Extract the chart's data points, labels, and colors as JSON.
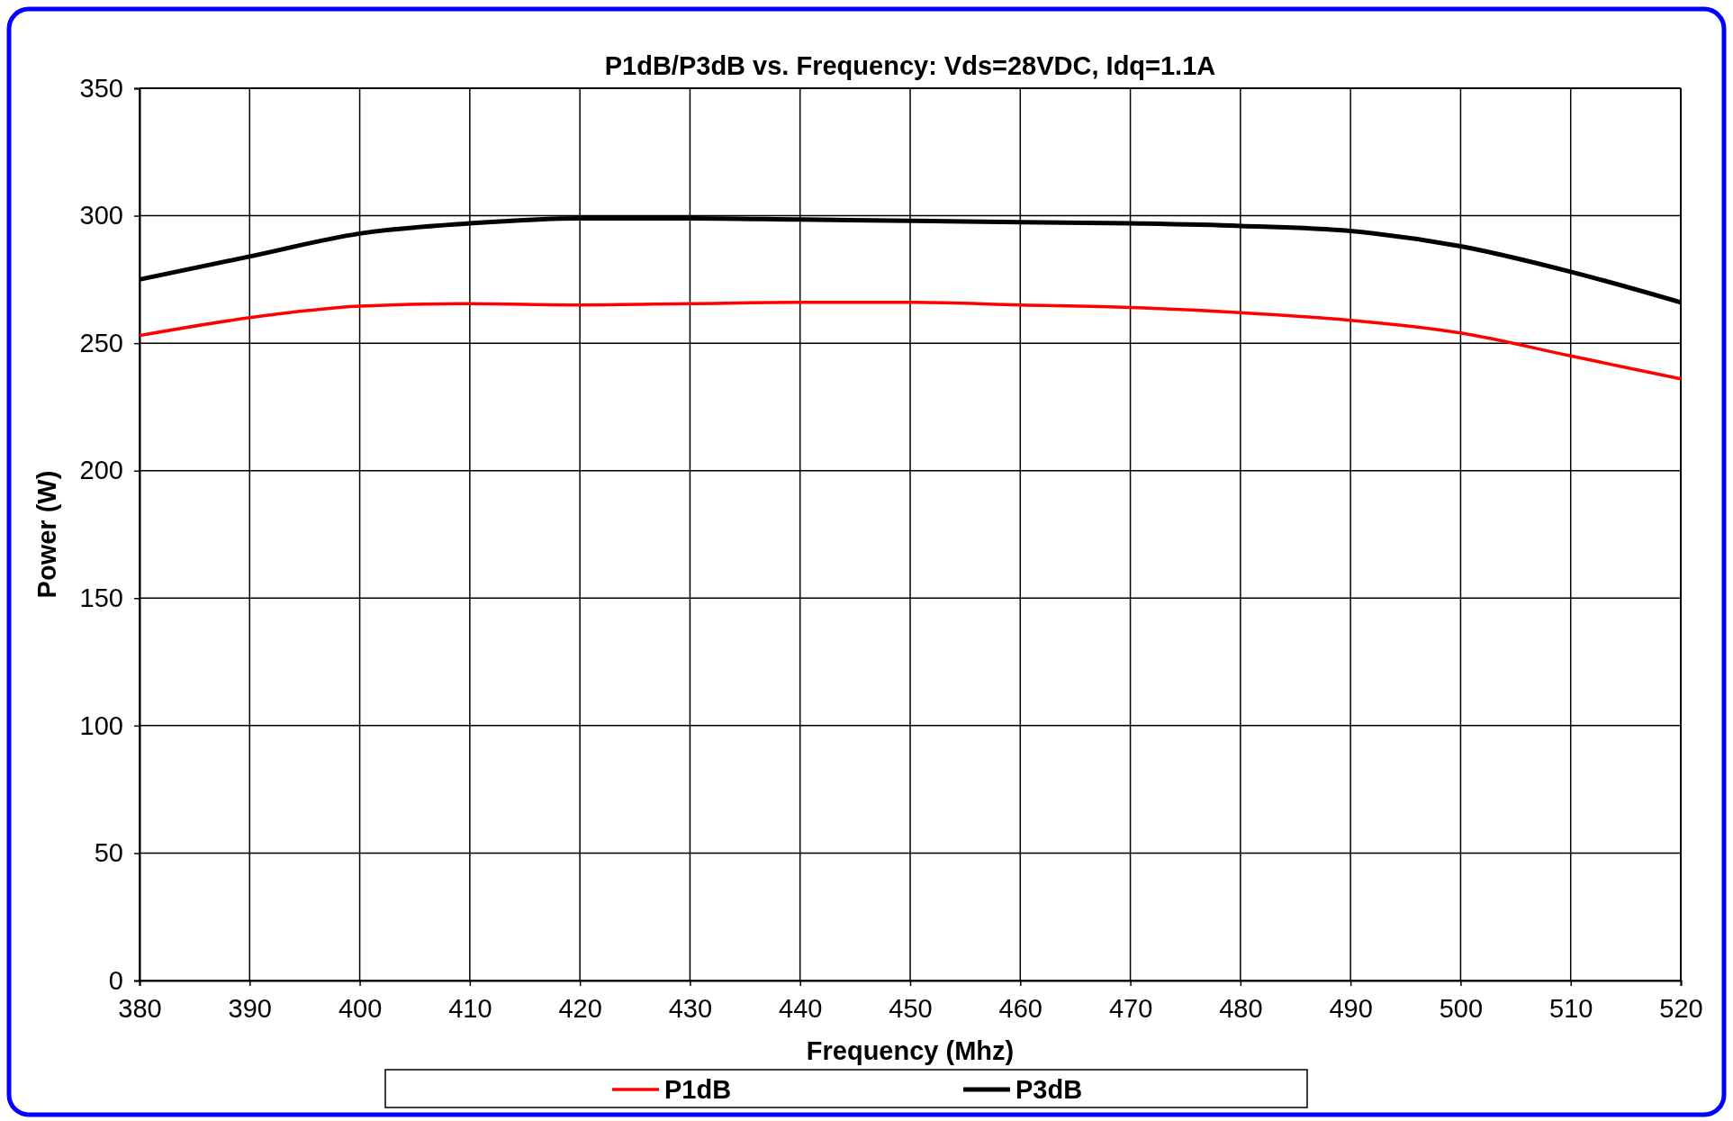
{
  "chart_data": {
    "type": "line",
    "title": "P1dB/P3dB vs. Frequency: Vds=28VDC, Idq=1.1A",
    "xlabel": "Frequency (Mhz)",
    "ylabel": "Power (W)",
    "x": [
      380,
      390,
      400,
      410,
      420,
      430,
      440,
      450,
      460,
      470,
      480,
      490,
      500,
      510,
      520
    ],
    "series": [
      {
        "name": "P1dB",
        "color": "#ff0000",
        "values": [
          253,
          260,
          264.5,
          265.5,
          265,
          265.5,
          266,
          266,
          265,
          264,
          262,
          259,
          254,
          245,
          236
        ]
      },
      {
        "name": "P3dB",
        "color": "#000000",
        "values": [
          275,
          284,
          293,
          297,
          299,
          299,
          298.5,
          298,
          297.5,
          297,
          296,
          294,
          288,
          278,
          266
        ]
      }
    ],
    "xlim": [
      380,
      520
    ],
    "xticks": [
      380,
      390,
      400,
      410,
      420,
      430,
      440,
      450,
      460,
      470,
      480,
      490,
      500,
      510,
      520
    ],
    "ylim": [
      0,
      350
    ],
    "yticks": [
      0,
      50,
      100,
      150,
      200,
      250,
      300,
      350
    ],
    "grid": true,
    "legend": "bottom",
    "marker": "none",
    "line_style": "solid"
  }
}
